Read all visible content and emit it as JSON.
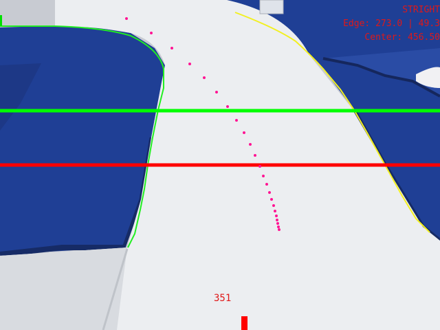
{
  "hud": {
    "state": "STRIGHT",
    "edge": "Edge: 273.0 | 49.3",
    "center": "Center: 456.50",
    "offset": "351"
  },
  "colors": {
    "track_blue": "#1f3f95",
    "track_dark": "#162b66",
    "road_white": "#eef0f2",
    "left_edge": "#22ee22",
    "right_edge": "#f2f020",
    "path_points": "#ff1493",
    "scan_line_upper": "#00ff00",
    "scan_line_lower": "#ff0000",
    "hud_text": "#e01818",
    "offset_marker": "#ff0000"
  }
}
